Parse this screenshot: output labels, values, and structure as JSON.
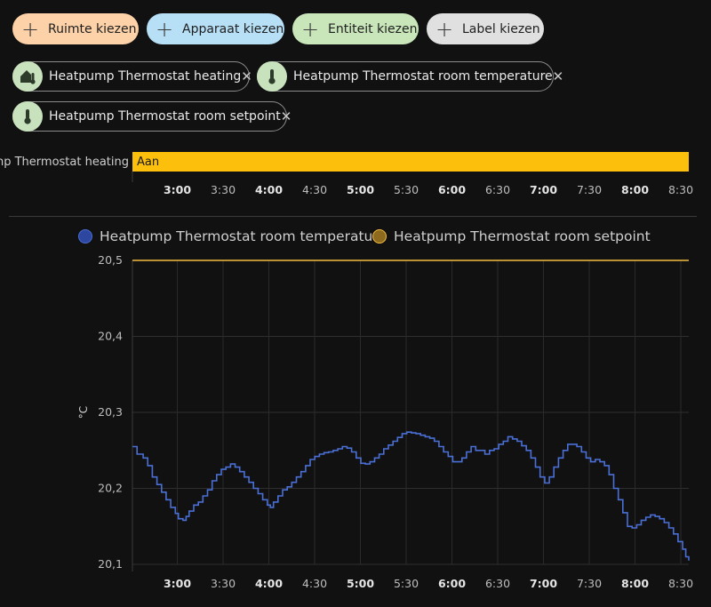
{
  "pickers": [
    {
      "label": "Ruimte kiezen",
      "color": "#fdd2a8"
    },
    {
      "label": "Apparaat kiezen",
      "color": "#b7e0f7"
    },
    {
      "label": "Entiteit kiezen",
      "color": "#c8e6b9"
    },
    {
      "label": "Label kiezen",
      "color": "#e0e0e0"
    }
  ],
  "chips": [
    {
      "label": "Heatpump Thermostat heating",
      "icon": "home-thermometer-icon",
      "remove": "✕"
    },
    {
      "label": "Heatpump Thermostat room temperature",
      "icon": "thermometer-icon",
      "remove": "✕"
    },
    {
      "label": "Heatpump Thermostat room setpoint",
      "icon": "thermometer-icon",
      "remove": "✕"
    }
  ],
  "chart_data": [
    {
      "type": "timeline",
      "row_label": "np Thermostat heating",
      "segments": [
        {
          "state": "Aan",
          "start": "2:30",
          "end": "8:33",
          "color": "#fbbf0c"
        }
      ],
      "x_ticks": [
        {
          "label": "3:00",
          "bold": true
        },
        {
          "label": "3:30",
          "bold": false
        },
        {
          "label": "4:00",
          "bold": true
        },
        {
          "label": "4:30",
          "bold": false
        },
        {
          "label": "5:00",
          "bold": true
        },
        {
          "label": "5:30",
          "bold": false
        },
        {
          "label": "6:00",
          "bold": true
        },
        {
          "label": "6:30",
          "bold": false
        },
        {
          "label": "7:00",
          "bold": true
        },
        {
          "label": "7:30",
          "bold": false
        },
        {
          "label": "8:00",
          "bold": true
        },
        {
          "label": "8:30",
          "bold": false
        }
      ]
    },
    {
      "type": "line",
      "ylabel": "°C",
      "ylim": [
        20.1,
        20.5
      ],
      "xlim_minutes": [
        0,
        363
      ],
      "y_ticks": [
        "20,1",
        "20,2",
        "20,3",
        "20,4",
        "20,5"
      ],
      "x_ticks": [
        {
          "label": "3:00",
          "bold": true
        },
        {
          "label": "3:30",
          "bold": false
        },
        {
          "label": "4:00",
          "bold": true
        },
        {
          "label": "4:30",
          "bold": false
        },
        {
          "label": "5:00",
          "bold": true
        },
        {
          "label": "5:30",
          "bold": false
        },
        {
          "label": "6:00",
          "bold": true
        },
        {
          "label": "6:30",
          "bold": false
        },
        {
          "label": "7:00",
          "bold": true
        },
        {
          "label": "7:30",
          "bold": false
        },
        {
          "label": "8:00",
          "bold": true
        },
        {
          "label": "8:30",
          "bold": false
        }
      ],
      "series": [
        {
          "name": "Heatpump Thermostat room temperature",
          "color": "#4a6fd6",
          "step": true,
          "points": [
            [
              0,
              20.255
            ],
            [
              3,
              20.245
            ],
            [
              7,
              20.24
            ],
            [
              10,
              20.23
            ],
            [
              13,
              20.215
            ],
            [
              16,
              20.205
            ],
            [
              19,
              20.195
            ],
            [
              22,
              20.185
            ],
            [
              25,
              20.175
            ],
            [
              28,
              20.167
            ],
            [
              30,
              20.16
            ],
            [
              33,
              20.158
            ],
            [
              35,
              20.163
            ],
            [
              37,
              20.17
            ],
            [
              40,
              20.178
            ],
            [
              43,
              20.182
            ],
            [
              46,
              20.19
            ],
            [
              49,
              20.198
            ],
            [
              52,
              20.21
            ],
            [
              55,
              20.218
            ],
            [
              58,
              20.225
            ],
            [
              61,
              20.228
            ],
            [
              64,
              20.232
            ],
            [
              67,
              20.228
            ],
            [
              70,
              20.222
            ],
            [
              73,
              20.215
            ],
            [
              76,
              20.208
            ],
            [
              79,
              20.2
            ],
            [
              82,
              20.193
            ],
            [
              85,
              20.185
            ],
            [
              88,
              20.178
            ],
            [
              90,
              20.175
            ],
            [
              92,
              20.182
            ],
            [
              95,
              20.19
            ],
            [
              98,
              20.198
            ],
            [
              101,
              20.202
            ],
            [
              104,
              20.208
            ],
            [
              107,
              20.215
            ],
            [
              110,
              20.222
            ],
            [
              113,
              20.23
            ],
            [
              116,
              20.238
            ],
            [
              119,
              20.242
            ],
            [
              122,
              20.245
            ],
            [
              125,
              20.247
            ],
            [
              128,
              20.248
            ],
            [
              131,
              20.25
            ],
            [
              134,
              20.252
            ],
            [
              137,
              20.255
            ],
            [
              140,
              20.253
            ],
            [
              143,
              20.248
            ],
            [
              146,
              20.24
            ],
            [
              149,
              20.233
            ],
            [
              152,
              20.232
            ],
            [
              155,
              20.235
            ],
            [
              158,
              20.24
            ],
            [
              161,
              20.245
            ],
            [
              164,
              20.252
            ],
            [
              167,
              20.257
            ],
            [
              170,
              20.262
            ],
            [
              173,
              20.267
            ],
            [
              176,
              20.272
            ],
            [
              179,
              20.274
            ],
            [
              182,
              20.273
            ],
            [
              185,
              20.272
            ],
            [
              188,
              20.27
            ],
            [
              191,
              20.268
            ],
            [
              194,
              20.266
            ],
            [
              197,
              20.262
            ],
            [
              200,
              20.255
            ],
            [
              203,
              20.248
            ],
            [
              206,
              20.242
            ],
            [
              209,
              20.235
            ],
            [
              212,
              20.235
            ],
            [
              215,
              20.24
            ],
            [
              218,
              20.248
            ],
            [
              221,
              20.255
            ],
            [
              224,
              20.25
            ],
            [
              227,
              20.25
            ],
            [
              230,
              20.245
            ],
            [
              233,
              20.25
            ],
            [
              236,
              20.252
            ],
            [
              239,
              20.258
            ],
            [
              242,
              20.262
            ],
            [
              245,
              20.268
            ],
            [
              248,
              20.265
            ],
            [
              251,
              20.262
            ],
            [
              254,
              20.256
            ],
            [
              257,
              20.25
            ],
            [
              260,
              20.24
            ],
            [
              263,
              20.228
            ],
            [
              266,
              20.215
            ],
            [
              269,
              20.207
            ],
            [
              272,
              20.215
            ],
            [
              275,
              20.228
            ],
            [
              278,
              20.24
            ],
            [
              281,
              20.25
            ],
            [
              284,
              20.258
            ],
            [
              287,
              20.258
            ],
            [
              290,
              20.255
            ],
            [
              293,
              20.248
            ],
            [
              296,
              20.24
            ],
            [
              299,
              20.235
            ],
            [
              302,
              20.238
            ],
            [
              305,
              20.235
            ],
            [
              308,
              20.23
            ],
            [
              311,
              20.218
            ],
            [
              314,
              20.2
            ],
            [
              317,
              20.185
            ],
            [
              320,
              20.168
            ],
            [
              323,
              20.15
            ],
            [
              326,
              20.148
            ],
            [
              329,
              20.152
            ],
            [
              332,
              20.158
            ],
            [
              335,
              20.162
            ],
            [
              338,
              20.165
            ],
            [
              341,
              20.163
            ],
            [
              344,
              20.16
            ],
            [
              347,
              20.155
            ],
            [
              350,
              20.148
            ],
            [
              353,
              20.14
            ],
            [
              356,
              20.13
            ],
            [
              359,
              20.12
            ],
            [
              361,
              20.11
            ],
            [
              363,
              20.105
            ]
          ]
        },
        {
          "name": "Heatpump Thermostat room setpoint",
          "color": "#f3bd3f",
          "step": true,
          "points": [
            [
              0,
              20.5
            ],
            [
              363,
              20.5
            ]
          ]
        }
      ]
    }
  ]
}
